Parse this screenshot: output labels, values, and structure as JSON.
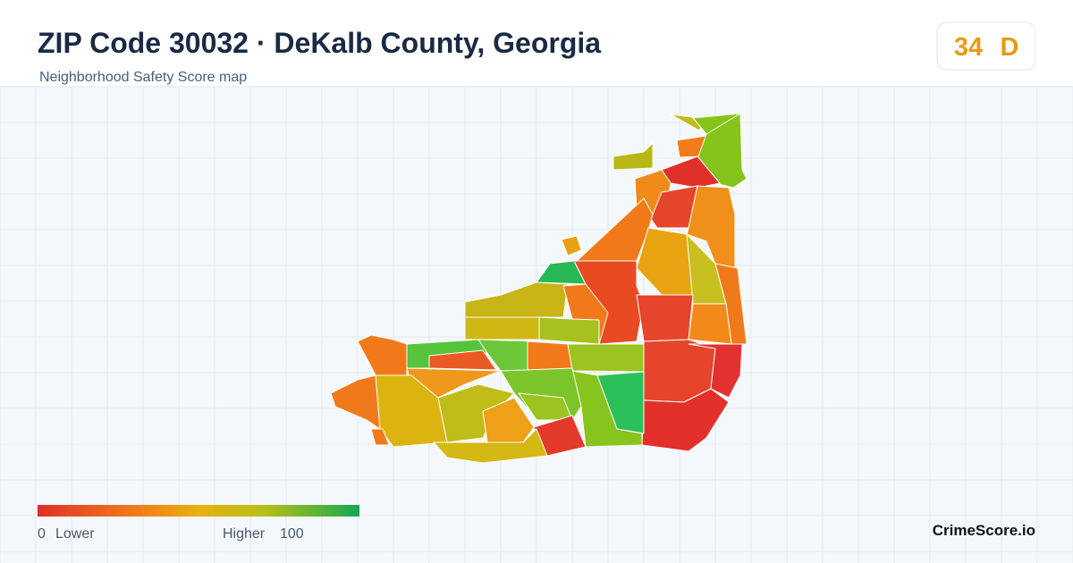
{
  "header": {
    "title": "ZIP Code 30032 · DeKalb County, Georgia",
    "subtitle": "Neighborhood Safety Score map"
  },
  "score": {
    "value": 34,
    "grade": "D"
  },
  "legend": {
    "min": 0,
    "min_label": "Lower",
    "max_label": "Higher",
    "max": 100
  },
  "brand": "CrimeScore.io"
}
